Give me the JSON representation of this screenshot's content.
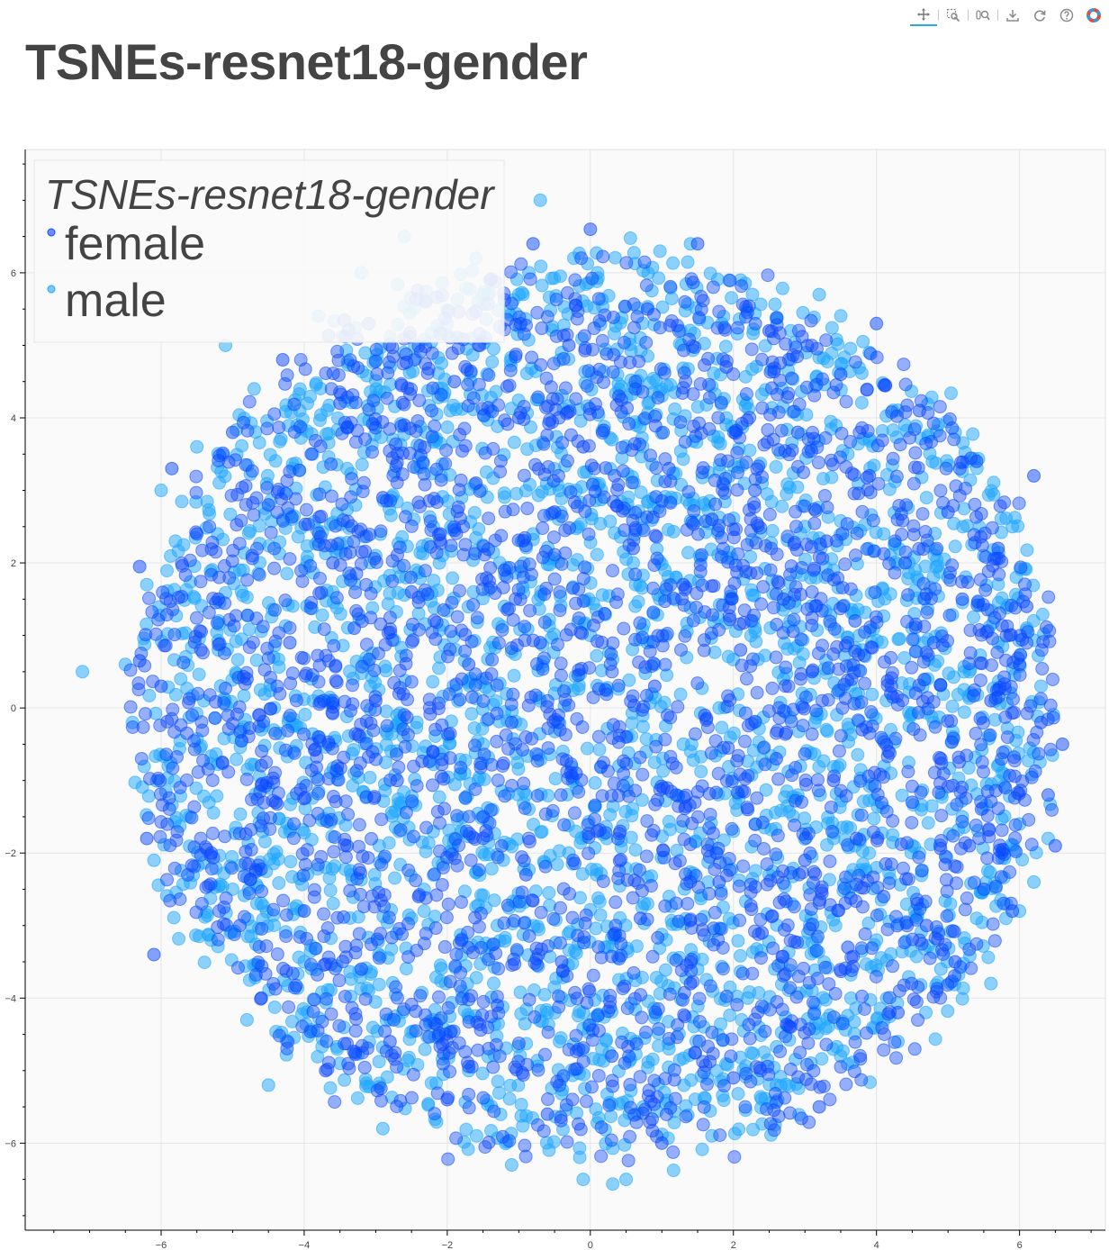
{
  "page_title": "TSNEs-resnet18-gender",
  "toolbar": {
    "tools": [
      {
        "name": "pan-tool",
        "icon": "pan-icon",
        "active": true
      },
      {
        "name": "box-zoom-tool",
        "icon": "box-zoom-icon",
        "active": false
      },
      {
        "name": "wheel-zoom-tool",
        "icon": "wheel-zoom-icon",
        "active": false
      },
      {
        "name": "save-tool",
        "icon": "save-icon",
        "active": false
      },
      {
        "name": "reset-tool",
        "icon": "reset-icon",
        "active": false
      },
      {
        "name": "help-tool",
        "icon": "help-icon",
        "active": false
      },
      {
        "name": "bokeh-logo",
        "icon": "bokeh-logo-icon",
        "active": false
      }
    ]
  },
  "colors": {
    "female": "#0a48ff",
    "male": "#1ea6ff",
    "plot_background": "#fafafa",
    "grid": "#e5e5e5",
    "text": "#444444"
  },
  "chart_data": {
    "type": "scatter",
    "title": "TSNEs-resnet18-gender",
    "xlabel": "",
    "ylabel": "",
    "xlim": [
      -7.9,
      7.2
    ],
    "ylim": [
      -7.2,
      7.7
    ],
    "x_ticks": [
      -6,
      -4,
      -2,
      0,
      2,
      4,
      6
    ],
    "x_tick_labels": [
      "−6",
      "−4",
      "−2",
      "0",
      "2",
      "4",
      "6"
    ],
    "y_ticks": [
      -6,
      -4,
      -2,
      0,
      2,
      4,
      6
    ],
    "y_tick_labels": [
      "−6",
      "−4",
      "−2",
      "0",
      "2",
      "4",
      "6"
    ],
    "grid": true,
    "legend": {
      "title": "TSNEs-resnet18-gender",
      "placement": "top-left",
      "entries": [
        "female",
        "male"
      ]
    },
    "series": [
      {
        "name": "female",
        "color": "#0a48ff",
        "description_points": [
          [
            -6.3,
            1.95
          ],
          [
            -6.3,
            0.65
          ],
          [
            -6.2,
            -1.8
          ],
          [
            -6.1,
            -3.4
          ],
          [
            -6.0,
            0.3
          ],
          [
            -5.85,
            3.3
          ],
          [
            -5.5,
            2.4
          ],
          [
            -5.3,
            -2.0
          ],
          [
            -5.2,
            1.5
          ],
          [
            -5.0,
            3.8
          ],
          [
            -4.9,
            -3.0
          ],
          [
            -4.8,
            0.4
          ],
          [
            -4.6,
            -4.0
          ],
          [
            -4.5,
            2.8
          ],
          [
            -4.4,
            -1.3
          ],
          [
            -4.3,
            4.8
          ],
          [
            -4.2,
            0.9
          ],
          [
            -4.0,
            -2.8
          ],
          [
            -3.9,
            3.5
          ],
          [
            -3.8,
            -0.4
          ],
          [
            -3.7,
            -5.0
          ],
          [
            -3.6,
            2.0
          ],
          [
            -3.5,
            4.2
          ],
          [
            -3.4,
            -1.9
          ],
          [
            -3.3,
            1.1
          ],
          [
            -3.2,
            -3.6
          ],
          [
            -3.1,
            5.3
          ],
          [
            -3.0,
            0.1
          ],
          [
            -2.9,
            2.9
          ],
          [
            -2.8,
            -4.6
          ],
          [
            -2.7,
            -1.0
          ],
          [
            -2.6,
            3.9
          ],
          [
            -2.5,
            1.6
          ],
          [
            -2.4,
            -2.6
          ],
          [
            -2.3,
            5.6
          ],
          [
            -2.2,
            -0.6
          ],
          [
            -2.1,
            2.4
          ],
          [
            -2.0,
            -5.4
          ],
          [
            -1.9,
            4.5
          ],
          [
            -1.8,
            -3.2
          ],
          [
            -1.7,
            0.6
          ],
          [
            -1.6,
            3.1
          ],
          [
            -1.5,
            -1.5
          ],
          [
            -1.4,
            5.9
          ],
          [
            -1.3,
            -4.1
          ],
          [
            -1.2,
            1.9
          ],
          [
            -1.1,
            -0.2
          ],
          [
            -1.0,
            4.0
          ],
          [
            -0.9,
            -2.3
          ],
          [
            -0.8,
            6.4
          ],
          [
            -0.7,
            0.9
          ],
          [
            -0.6,
            -5.6
          ],
          [
            -0.5,
            2.7
          ],
          [
            -0.4,
            -3.5
          ],
          [
            -0.3,
            5.0
          ],
          [
            -0.2,
            -0.9
          ],
          [
            -0.1,
            3.6
          ],
          [
            0.0,
            6.6
          ],
          [
            0.1,
            -1.7
          ],
          [
            0.2,
            1.3
          ],
          [
            0.3,
            -4.8
          ],
          [
            0.4,
            4.3
          ],
          [
            0.5,
            -0.4
          ],
          [
            0.6,
            2.2
          ],
          [
            0.7,
            -2.9
          ],
          [
            0.8,
            5.5
          ],
          [
            0.9,
            0.3
          ],
          [
            1.0,
            -6.0
          ],
          [
            1.1,
            3.3
          ],
          [
            1.2,
            -1.2
          ],
          [
            1.3,
            1.7
          ],
          [
            1.4,
            -3.8
          ],
          [
            1.5,
            6.4
          ],
          [
            1.6,
            -0.1
          ],
          [
            1.7,
            2.6
          ],
          [
            1.8,
            -2.4
          ],
          [
            1.9,
            4.7
          ],
          [
            2.0,
            -5.1
          ],
          [
            2.1,
            0.8
          ],
          [
            2.2,
            -1.4
          ],
          [
            2.3,
            3.0
          ],
          [
            2.4,
            -3.1
          ],
          [
            2.5,
            5.2
          ],
          [
            2.6,
            -0.7
          ],
          [
            2.7,
            1.5
          ],
          [
            2.8,
            -4.4
          ],
          [
            2.9,
            3.8
          ],
          [
            3.0,
            -2.1
          ],
          [
            3.1,
            0.5
          ],
          [
            3.2,
            -5.5
          ],
          [
            3.3,
            2.3
          ],
          [
            3.4,
            -1.0
          ],
          [
            3.5,
            4.6
          ],
          [
            3.6,
            -3.3
          ],
          [
            3.7,
            1.2
          ],
          [
            3.8,
            -0.3
          ],
          [
            3.9,
            3.2
          ],
          [
            4.0,
            5.3
          ],
          [
            4.1,
            -2.6
          ],
          [
            4.2,
            0.2
          ],
          [
            4.3,
            -4.2
          ],
          [
            4.4,
            2.0
          ],
          [
            4.5,
            -1.3
          ],
          [
            4.6,
            4.1
          ],
          [
            4.7,
            -3.0
          ],
          [
            4.8,
            0.9
          ],
          [
            4.9,
            -0.7
          ],
          [
            5.0,
            2.7
          ],
          [
            5.1,
            -3.5
          ],
          [
            5.2,
            1.5
          ],
          [
            5.3,
            -1.9
          ],
          [
            5.4,
            3.4
          ],
          [
            5.5,
            -2.5
          ],
          [
            5.6,
            0.1
          ],
          [
            5.7,
            2.2
          ],
          [
            5.8,
            -1.1
          ],
          [
            5.9,
            -2.8
          ],
          [
            6.0,
            0.6
          ],
          [
            6.1,
            1.4
          ],
          [
            6.2,
            3.2
          ],
          [
            6.3,
            -0.2
          ],
          [
            6.4,
            -1.2
          ],
          [
            6.5,
            -1.9
          ],
          [
            6.6,
            -0.5
          ]
        ],
        "approximate_count": 4000
      },
      {
        "name": "male",
        "color": "#1ea6ff",
        "description_points": [
          [
            -7.1,
            0.5
          ],
          [
            -6.5,
            0.6
          ],
          [
            -6.4,
            -0.2
          ],
          [
            -6.2,
            1.7
          ],
          [
            -6.1,
            -2.1
          ],
          [
            -6.0,
            3.0
          ],
          [
            -5.9,
            -0.8
          ],
          [
            -5.8,
            2.3
          ],
          [
            -5.6,
            -1.5
          ],
          [
            -5.5,
            3.6
          ],
          [
            -5.3,
            -3.2
          ],
          [
            -5.2,
            0.8
          ],
          [
            -5.1,
            5.0
          ],
          [
            -5.0,
            -2.5
          ],
          [
            -4.9,
            1.9
          ],
          [
            -4.8,
            -4.3
          ],
          [
            -4.7,
            4.4
          ],
          [
            -4.6,
            -0.3
          ],
          [
            -4.5,
            -5.2
          ],
          [
            -4.3,
            2.6
          ],
          [
            -4.2,
            -1.7
          ],
          [
            -4.1,
            3.9
          ],
          [
            -4.0,
            -3.5
          ],
          [
            -3.9,
            0.4
          ],
          [
            -3.8,
            5.4
          ],
          [
            -3.7,
            -2.2
          ],
          [
            -3.6,
            1.6
          ],
          [
            -3.5,
            -4.9
          ],
          [
            -3.4,
            3.3
          ],
          [
            -3.3,
            -0.9
          ],
          [
            -3.2,
            6.0
          ],
          [
            -3.1,
            -3.9
          ],
          [
            -3.0,
            2.1
          ],
          [
            -2.9,
            -5.8
          ],
          [
            -2.8,
            4.7
          ],
          [
            -2.7,
            -0.1
          ],
          [
            -2.6,
            6.5
          ],
          [
            -2.5,
            -2.9
          ],
          [
            -2.4,
            1.3
          ],
          [
            -2.3,
            3.8
          ],
          [
            -2.2,
            -4.3
          ],
          [
            -2.1,
            0.7
          ],
          [
            -2.0,
            5.3
          ],
          [
            -1.9,
            -1.8
          ],
          [
            -1.8,
            2.9
          ],
          [
            -1.7,
            -5.0
          ],
          [
            -1.6,
            6.2
          ],
          [
            -1.5,
            -0.5
          ],
          [
            -1.4,
            4.1
          ],
          [
            -1.3,
            -3.0
          ],
          [
            -1.2,
            1.4
          ],
          [
            -1.1,
            -6.3
          ],
          [
            -1.0,
            5.7
          ],
          [
            -0.9,
            -1.2
          ],
          [
            -0.8,
            2.4
          ],
          [
            -0.7,
            7.0
          ],
          [
            -0.6,
            -4.2
          ],
          [
            -0.5,
            0.2
          ],
          [
            -0.4,
            4.9
          ],
          [
            -0.3,
            -2.0
          ],
          [
            -0.2,
            3.0
          ],
          [
            -0.1,
            -6.5
          ],
          [
            0.0,
            1.0
          ],
          [
            0.1,
            6.0
          ],
          [
            0.2,
            -3.3
          ],
          [
            0.3,
            3.7
          ],
          [
            0.4,
            -0.8
          ],
          [
            0.5,
            -6.5
          ],
          [
            0.6,
            2.0
          ],
          [
            0.7,
            5.1
          ],
          [
            0.8,
            -2.7
          ],
          [
            0.9,
            0.6
          ],
          [
            1.0,
            4.3
          ],
          [
            1.1,
            -4.7
          ],
          [
            1.2,
            1.8
          ],
          [
            1.3,
            -0.5
          ],
          [
            1.4,
            6.4
          ],
          [
            1.5,
            -3.6
          ],
          [
            1.6,
            2.8
          ],
          [
            1.7,
            -5.9
          ],
          [
            1.8,
            0.0
          ],
          [
            1.9,
            4.0
          ],
          [
            2.0,
            -1.7
          ],
          [
            2.1,
            5.9
          ],
          [
            2.2,
            -4.0
          ],
          [
            2.3,
            1.1
          ],
          [
            2.4,
            3.1
          ],
          [
            2.5,
            -2.3
          ],
          [
            2.6,
            -5.2
          ],
          [
            2.7,
            0.4
          ],
          [
            2.8,
            4.8
          ],
          [
            2.9,
            -1.2
          ],
          [
            3.0,
            2.5
          ],
          [
            3.1,
            -3.9
          ],
          [
            3.2,
            5.7
          ],
          [
            3.3,
            -0.3
          ],
          [
            3.4,
            1.9
          ],
          [
            3.5,
            -4.8
          ],
          [
            3.6,
            3.5
          ],
          [
            3.7,
            -1.9
          ],
          [
            3.8,
            0.8
          ],
          [
            3.9,
            4.9
          ],
          [
            4.0,
            -3.2
          ],
          [
            4.1,
            2.4
          ],
          [
            4.2,
            -0.9
          ],
          [
            4.3,
            -4.6
          ],
          [
            4.4,
            3.9
          ],
          [
            4.5,
            1.1
          ],
          [
            4.6,
            -2.0
          ],
          [
            4.7,
            2.9
          ],
          [
            4.8,
            -0.2
          ],
          [
            4.9,
            -3.6
          ],
          [
            5.0,
            1.8
          ],
          [
            5.1,
            3.8
          ],
          [
            5.2,
            -1.5
          ],
          [
            5.3,
            0.5
          ],
          [
            5.4,
            -2.9
          ],
          [
            5.5,
            2.1
          ],
          [
            5.6,
            -3.8
          ],
          [
            5.7,
            0.9
          ],
          [
            5.8,
            -0.6
          ],
          [
            5.9,
            2.5
          ],
          [
            6.0,
            -1.6
          ],
          [
            6.1,
            1.1
          ],
          [
            6.2,
            -2.4
          ],
          [
            6.3,
            0.3
          ],
          [
            6.4,
            -1.8
          ],
          [
            6.0,
            -2.8
          ]
        ],
        "approximate_count": 4000
      }
    ]
  }
}
